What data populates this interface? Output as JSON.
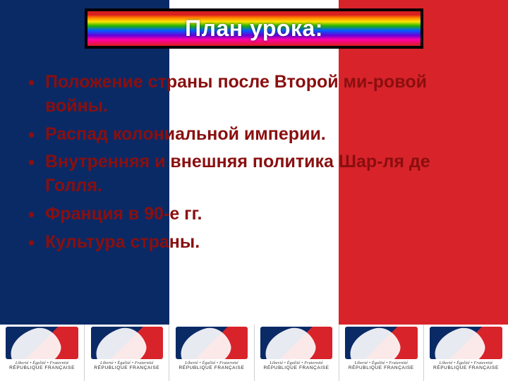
{
  "colors": {
    "flag_blue": "#0a2a66",
    "flag_white": "#ffffff",
    "flag_red": "#d8232a",
    "text_main": "#8a0f0f",
    "title_text": "#ffffff",
    "title_border": "#000000"
  },
  "title": "План урока:",
  "bullets": [
    "Положение страны после Второй ми-ровой войны.",
    "Распад колониальной империи.",
    "Внутренняя и внешняя политика Шар-ля де Голля.",
    "Франция в 90-е гг.",
    "Культура страны."
  ],
  "logo": {
    "count": 6,
    "motto": "Liberté • Égalité • Fraternité",
    "country": "RÉPUBLIQUE FRANÇAISE"
  },
  "typography": {
    "title_fontsize": 32,
    "bullet_fontsize": 25,
    "font_family": "Arial"
  }
}
